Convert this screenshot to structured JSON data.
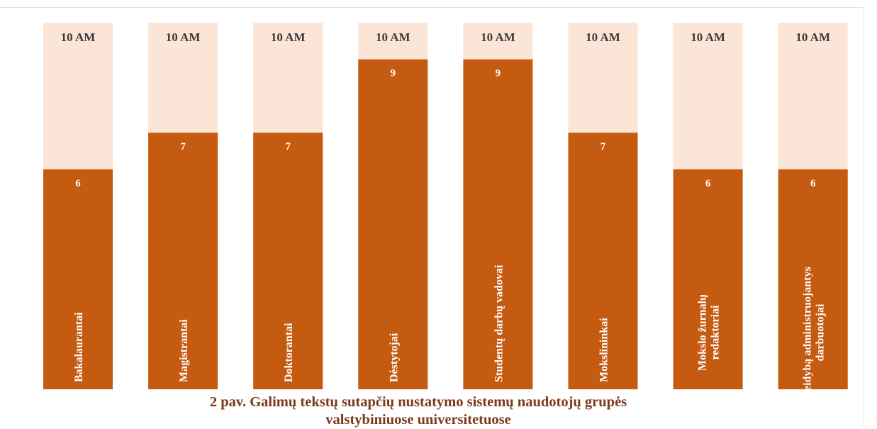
{
  "chart_data": {
    "type": "bar",
    "categories": [
      "Bakalaurantai",
      "Magistrantai",
      "Doktorantai",
      "Dėstytojai",
      "Studentų darbų vadovai",
      "Mokslininkai",
      [
        "Mokslo žurnalų",
        "redaktoriai"
      ],
      [
        "Leidybą administruojantys",
        "darbuotojai"
      ]
    ],
    "values": [
      6,
      7,
      7,
      9,
      9,
      7,
      6,
      6
    ],
    "max_values": [
      10,
      10,
      10,
      10,
      10,
      10,
      10,
      10
    ],
    "max_labels": [
      "10 AM",
      "10 AM",
      "10 AM",
      "10 AM",
      "10 AM",
      "10 AM",
      "10 AM",
      "10 AM"
    ],
    "ylim": [
      0,
      10
    ],
    "colors": {
      "value": "#c55a11",
      "max": "#fbe5d6",
      "max_label": "#3a3a3a",
      "value_label": "#ffffff"
    }
  },
  "caption": {
    "line1": "2 pav. Galimų tekstų sutapčių nustatymo sistemų naudotojų grupės",
    "line2": "valstybiniuose universitetuose"
  }
}
